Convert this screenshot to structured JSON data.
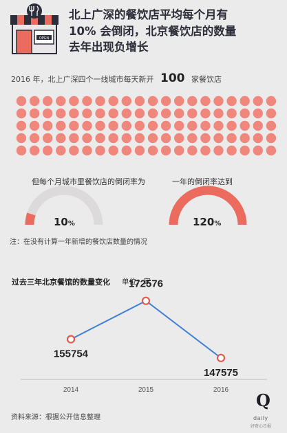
{
  "header": {
    "title_lines": [
      "北上广深的餐饮店平均每个月有",
      "10% 会倒闭，北京餐饮店的数量",
      "去年出现负增长"
    ],
    "sign_text": "OPEN"
  },
  "lead": {
    "prefix": "2016 年，北上广深四个一线城市每天新开",
    "number": "100",
    "suffix": "家餐饮店"
  },
  "dots": {
    "count": 100,
    "color": "#f0877d"
  },
  "gauges": [
    {
      "label": "但每个月城市里餐饮店的倒闭率为",
      "value_num": "10",
      "value_unit": "%",
      "percent": 10
    },
    {
      "label": "一年的倒闭率达到",
      "value_num": "120",
      "value_unit": "%",
      "percent": 100
    }
  ],
  "note": "注：在没有计算一年新增的餐饮店数量的情况",
  "chart_data": {
    "type": "line",
    "title": "过去三年北京餐馆的数量变化",
    "unit": "单位：家",
    "x": [
      "2014",
      "2015",
      "2016"
    ],
    "series": [
      {
        "values": [
          155754,
          172576,
          147575
        ]
      }
    ],
    "data_labels": [
      "155754",
      "172576",
      "147575"
    ],
    "ylim": [
      140000,
      180000
    ],
    "grid": false
  },
  "source": "资料来源：根据公开信息整理",
  "logo": {
    "letter": "Q",
    "sub": "daily",
    "sub2": "好奇心日报"
  },
  "colors": {
    "accent": "#eb6c5f",
    "gauge_track": "#dcdada",
    "line": "#3f7fd6",
    "point_edge": "#e05a4f",
    "navy": "#2c2e3a"
  }
}
